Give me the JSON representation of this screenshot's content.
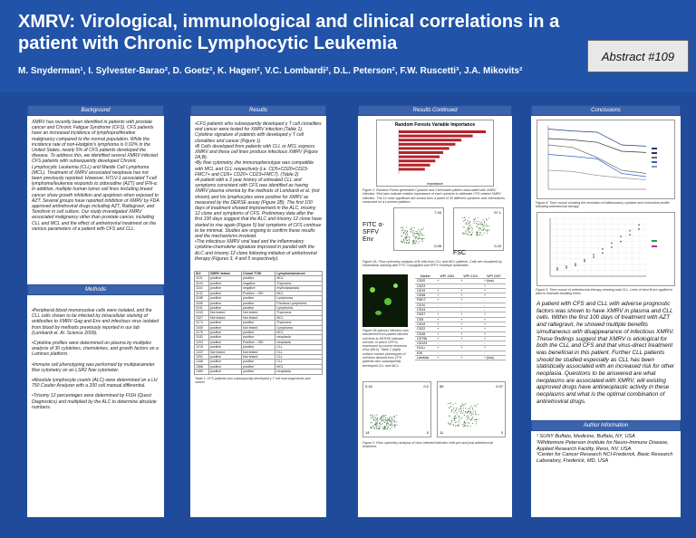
{
  "header": {
    "title": "XMRV: Virological, immunological and clinical correlations in a patient with Chronic Lymphocytic Leukemia",
    "authors": "M. Snyderman¹, I. Sylvester-Barao², D. Goetz², K. Hagen², V.C. Lombardi², D.L. Peterson², F.W. Ruscetti³, J.A. Mikovits²",
    "abstract": "Abstract #109"
  },
  "sections": {
    "background": "Background",
    "methods": "Methods",
    "results": "Results",
    "results_cont": "Results Continued",
    "conclusions": "Conclusions",
    "author_info": "Author Information"
  },
  "background_text": "XMRV has recently been identified in patients with prostate cancer and Chronic Fatigue Syndrome (CFS). CFS patients have an increased incidence of lymphoproliferative malignancy compared to the normal population. While the incidence rate of non-Hodgkin's lymphoma is 0.02% in the United States, nearly 5% of CFS patients developed the disease. To address this, we identified several XMRV infected CFS patients with subsequently developed Chronic Lymphocytic Leukemia (CLL) and Mantle Cell Lymphoma (MCL). Treatment of XMRV associated neoplasia has not been previously reported. However, HTLV-1 associated T-cell lymphoma/leukemia responds to zidovudine (AZT) and IFN-α. In addition, multiple human tumor cell lines including breast cancer show growth inhibition and apoptosis when exposed to AZT. Several groups have reported inhibition of XMRV by FDA approved antiretroviral drugs including AZT, Raltegravir, and Tenofovir in cell culture. Our study investigated XMRV associated malignancy other than prostate cancer, including CLL and MCL and the effect of antiretroviral treatment on the various parameters of a patient with CFS and CLL.",
  "methods": [
    "•Peripheral blood mononuclear cells were isolated, and the CLL cells shown to be infected by intracellular staining of antibodies to XMRV Gag and Env and infectious virus isolated from blood by methods previously reported in our lab (Lombardi et. Al. Science 2009).",
    "•Cytokine profiles were determined on plasma by multiplex analysis of 30 cytokines, chemokines, and growth factors on a Luminex platform.",
    "•Immune cell phenotyping was performed by multiparameter flow cytometry on an LSR2 flow cytometer.",
    "•Absolute lymphocyte counts (ALC) were determined on a LH 750 Coulter Analyzer with a 200 cell manual differential.",
    "•Trisomy 12 percentages were determined by FISH (Quest Diagnostics) and multiplied by the ALC to determine absolute numbers."
  ],
  "results_text": [
    "•CFS patients who subsequently developed γ T cell clonalities and cancer were tested for XMRV infection (Table 1).",
    "Cytokine signature of patients with developed γ T cell clonalities and cancer (Figure 1)",
    "•B Cells developed from patients with CLL or MCL express XMRV and these cell lines produce infectious XMRV (Figure 2A,B).",
    "•By flow cytometry, the immunophenotype was compatible with MCL and CLL respectively (i.e. CD5+CD20+CD23-FMC7+ and CD5+ CD20+ CD23+FMC7). (Table 2)",
    "•A patient with a 3 year history of untreated CLL and symptoms consistent with CFS was identified as having XMRV plasma viremia by the methods of Lombardi et al. (not shown) and his lymphocytes were positive for XMRV as measured by the DERSE assay (Figure 2B). The first 100 days of treatment showed improvement in the ALC, trisomy 12 clone and symptoms of CFS. Preliminary data after the first 100 days suggest that the ALC and trisomy 12 clone have started to rise again (Figure 5) but symptoms of CFS continue to be minimal. Studies are ongoing to confirm these results and the mechanisms involved.",
    "•The infectious XMRV viral load and the inflammatory cytokine-chemokine signature improved in parallel with the ALC and trisomy 12 clone following initiation of antiretroviral therapy (Figures 3, 4 and 5 respectively)."
  ],
  "table1": {
    "headers": [
      "ID#",
      "XMRV status",
      "Clonal TCRr",
      "Lymphoma/cancer"
    ],
    "rows": [
      [
        "1101",
        "positive",
        "positive",
        "MCL"
      ],
      [
        "1104",
        "positive",
        "negative",
        "Thymoma"
      ],
      [
        "1116",
        "positive",
        "negative",
        "myelodysplasia"
      ],
      [
        "1132",
        "positive",
        "Positive – IGK",
        "MCL"
      ],
      [
        "1188",
        "positive",
        "positive",
        "Lymphoma"
      ],
      [
        "1189",
        "positive",
        "positive",
        "Previous Lymphoma"
      ],
      [
        "1191",
        "positive",
        "positive",
        "Lymphoma"
      ],
      [
        "1243",
        "Not tested",
        "Not tested",
        "Thymoma"
      ],
      [
        "1327",
        "Not tested",
        "Not tested",
        "MCL"
      ],
      [
        "1174",
        "positive",
        "positive",
        "Thymoma"
      ],
      [
        "1049",
        "positive",
        "Not tested",
        "Lymphoma"
      ],
      [
        "1176",
        "positive",
        "positive",
        "MCL"
      ],
      [
        "1183",
        "positive",
        "positive",
        "neoplasia"
      ],
      [
        "1204",
        "positive",
        "Positive – IGK",
        "neoplasia"
      ],
      [
        "1215",
        "positive",
        "positive",
        "CLL"
      ],
      [
        "1222",
        "Not tested",
        "Not tested",
        "CLL"
      ],
      [
        "1251",
        "positive",
        "Not tested",
        "CLL"
      ],
      [
        "1346",
        "positive",
        "positive",
        "CLL"
      ],
      [
        "1366",
        "positive",
        "positive",
        "MCL"
      ],
      [
        "1480",
        "positive",
        "positive",
        "neoplasia"
      ]
    ],
    "caption": "Table 1: CFS patients who subsequently developed γ T cell rearrangements and cancer."
  },
  "fig1": {
    "title": "Random Forests Variable Importance",
    "xlabel": "Importance",
    "caption": "Figure 1: Random Forest generated Cytokine and Chemokine pattern associated with XMRV infection. Red bars indicate relative importance of each cytokine to delineate CFS related XMRV infection. The 10 most significant are shown from a panel of 30 different cytokines and chemokines measured on a Luminex platform."
  },
  "fig2a": {
    "ylabel": "FITC α-SFFV Env",
    "xlabel": "FSC",
    "v1": "7.34",
    "v2": "0.06",
    "v3": "97.1",
    "v4": "0.23",
    "caption": "Figure 2A: Flow cytometry analysis of B cells from CLL and MCL patients. Cells are visualized by intracellular staining with FITC conjugated anti SFFV envelope antibodies."
  },
  "fig2b_caption": "Figure 2B (above) Infection was transferred from patient derived cell lines to DERSE indicator cell line, in which GFP is expressed by murine leukemia virus (MLV). Table 2 (right) surface marker phenotypes of cell lines derived from CFS patients who subsequently developed CLL and MCL.",
  "table2": {
    "headers": [
      "Marker",
      "WPI 1262",
      "WPI 2110",
      "WPI 2267"
    ],
    "rows": [
      [
        "CD20",
        "+",
        "+",
        "+ (low)"
      ],
      [
        "CD23",
        "-",
        "-",
        "+"
      ],
      [
        "CD19",
        "+",
        "+",
        "+"
      ],
      [
        "CD38",
        "+",
        "+",
        "+"
      ],
      [
        "FMC7",
        "+",
        "+",
        "-"
      ],
      [
        "CD10",
        "-",
        "-",
        "-"
      ],
      [
        "CD34",
        "-",
        "-",
        "-"
      ],
      [
        "CD37",
        "+",
        "+",
        "+"
      ],
      [
        "CD5",
        "+",
        "+",
        "+"
      ],
      [
        "CD19",
        "+",
        "+",
        "+"
      ],
      [
        "CD22",
        "+",
        "+",
        "+"
      ],
      [
        "CD45",
        "+",
        "+",
        "+"
      ],
      [
        "CD79b",
        "+",
        "+",
        "+"
      ],
      [
        "CD123",
        "-",
        "-",
        "-"
      ],
      [
        "HLA-r",
        "+",
        "+",
        "+"
      ],
      [
        "IGK",
        "-",
        "-",
        "-"
      ],
      [
        "Lambda",
        "+",
        "+",
        "+ (low)"
      ]
    ]
  },
  "fig3": {
    "caption": "Figure 3: Flow cytometry analysis of virus infected indicator cells pre and post antiretroviral treatment.",
    "v1": "0.16",
    "v2": "0.2",
    "v3": "14",
    "v4": "0",
    "v5": "55",
    "v6": "0.37",
    "v7": "11",
    "v8": "0"
  },
  "fig4_caption": "Figure 4: Time course showing the resolution of inflammatory cytokine and chemokine profile following antiretroviral therapy.",
  "fig5_caption": "Figure 5: Time course of antiretroviral therapy showing total CLL. Lines of best fit are applied to data to estimate doubling times.",
  "conclusion_text": "A patient with CFS and CLL with adverse prognostic factors was shown to have XMRV in plasma and CLL cells. Within the first 100 days of treatment with AZT and raltegravir, he showed multiple benefits simultaneous with disappearance of infectious XMRV. These findings suggest that XMRV is etiological for both the CLL and CFS and that virus-direct treatment was beneficial in this patient. Further CLL patients should be studied especially as CLL has been statistically associated with an increased risk for other neoplasia. Questions to be answered are what neoplasms are associated with XMRV, will existing approved drugs have antineoplastic activity in these neoplasms and what is the optimal combination of antiretroviral drugs.",
  "author_info": [
    "¹ SUNY Buffalo, Medicine, Buffalo, NY, USA",
    "²Whittemore Peterson Institute for Neuro-Immune Disease, Applied Research Facility, Reno, NV, USA",
    "³Center for Cancer Research NCI-Frederick, Basic Research Laboratory, Frederick, MD, USA"
  ],
  "colors": {
    "background": "#1f4b9a",
    "section_header": "#3b63ad",
    "importance_bar": "#b5222a"
  },
  "chart_data": [
    {
      "type": "bar",
      "title": "Random Forests Variable Importance",
      "xlabel": "Importance",
      "categories": [
        "c1",
        "c2",
        "c3",
        "c4",
        "c5",
        "c6",
        "c7",
        "c8",
        "c9",
        "c10"
      ],
      "values": [
        10,
        8.5,
        7.2,
        6.5,
        5.8,
        5.1,
        4.7,
        4.2,
        3.6,
        3.0
      ],
      "xlim": [
        0,
        10
      ]
    },
    {
      "type": "line",
      "series": [
        {
          "values": [
            95,
            92,
            90,
            70,
            68
          ]
        },
        {
          "values": [
            80,
            78,
            74,
            60,
            58
          ]
        },
        {
          "values": [
            70,
            66,
            50,
            30,
            25
          ]
        },
        {
          "values": [
            55,
            52,
            48,
            25,
            20
          ]
        },
        {
          "values": [
            30,
            28,
            22,
            18,
            15
          ]
        }
      ]
    },
    {
      "type": "scatter",
      "series": [
        {
          "values": [
            10,
            12,
            15,
            20,
            26,
            33,
            40,
            48,
            55,
            62
          ]
        },
        {
          "values": [
            8,
            10,
            13,
            18,
            23,
            28,
            35,
            42,
            50,
            57
          ]
        }
      ]
    }
  ]
}
